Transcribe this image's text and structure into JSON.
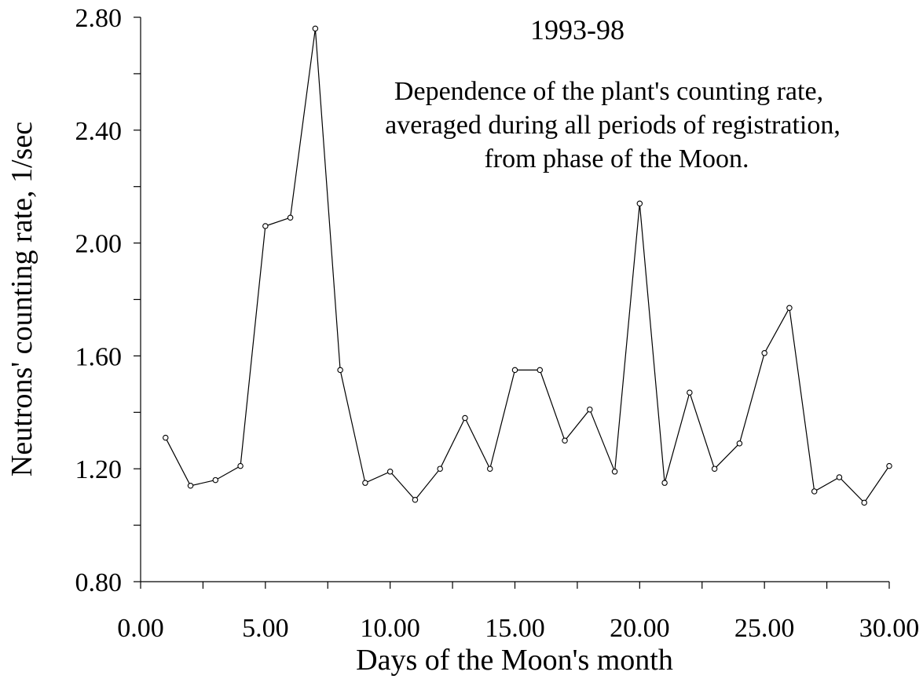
{
  "chart_data": {
    "type": "line",
    "title": "1993-98",
    "subtitle_lines": [
      "Dependence of the plant's counting rate,",
      "averaged during all periods of registration,",
      "from phase of the Moon."
    ],
    "xlabel": "Days of the Moon's month",
    "ylabel": "Neutrons' counting rate, 1/sec",
    "xlim": [
      0,
      30
    ],
    "ylim": [
      0.8,
      2.8
    ],
    "x_ticks": [
      0,
      5,
      10,
      15,
      20,
      25,
      30
    ],
    "x_tick_labels": [
      "0.00",
      "5.00",
      "10.00",
      "15.00",
      "20.00",
      "25.00",
      "30.00"
    ],
    "x_minor_step": 2.5,
    "y_ticks": [
      0.8,
      1.2,
      1.6,
      2.0,
      2.4,
      2.8
    ],
    "y_tick_labels": [
      "0.80",
      "1.20",
      "1.60",
      "2.00",
      "2.40",
      "2.80"
    ],
    "y_minor_step": 0.2,
    "grid": false,
    "series": [
      {
        "name": "counting rate",
        "x": [
          1,
          2,
          3,
          4,
          5,
          6,
          7,
          8,
          9,
          10,
          11,
          12,
          13,
          14,
          15,
          16,
          17,
          18,
          19,
          20,
          21,
          22,
          23,
          24,
          25,
          26,
          27,
          28,
          29,
          30
        ],
        "values": [
          1.31,
          1.14,
          1.16,
          1.21,
          2.06,
          2.09,
          2.76,
          1.55,
          1.15,
          1.19,
          1.09,
          1.2,
          1.38,
          1.2,
          1.55,
          1.55,
          1.3,
          1.41,
          1.19,
          2.14,
          1.15,
          1.47,
          1.2,
          1.29,
          1.61,
          1.77,
          1.12,
          1.17,
          1.08,
          1.21
        ]
      }
    ]
  }
}
